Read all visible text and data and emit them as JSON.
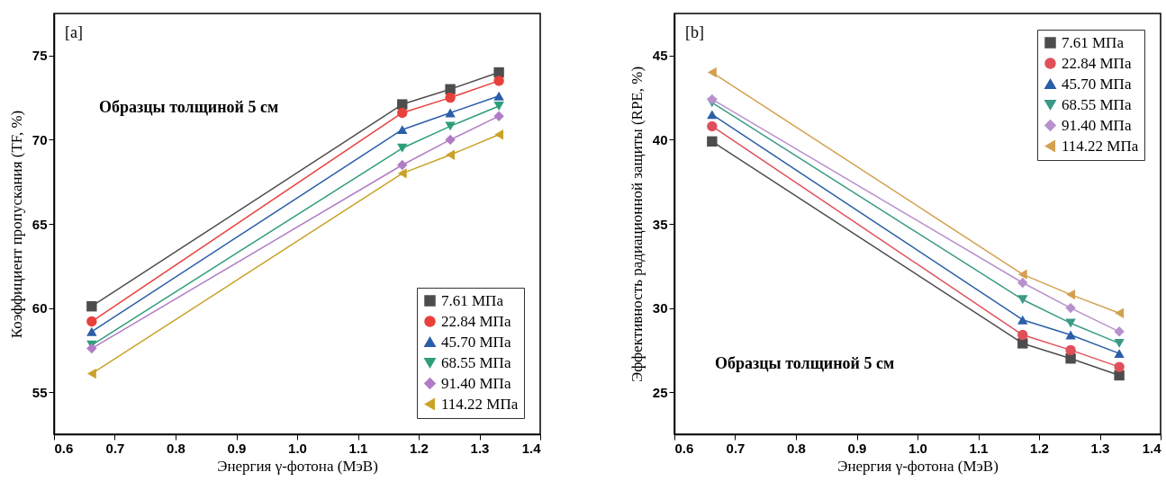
{
  "chart_data": [
    {
      "type": "line",
      "title": null,
      "annotations": [
        "[a]",
        "Образцы толщиной 5 см"
      ],
      "xlabel": "Энергия γ-фотона (МэВ)",
      "ylabel": "Коэффициент пропускания (TF, %)",
      "x": [
        0.662,
        1.173,
        1.252,
        1.332
      ],
      "xlim": [
        0.6,
        1.4
      ],
      "xticks": [
        0.6,
        0.7,
        0.8,
        0.9,
        {
          "value": 1,
          "label": "1.0"
        },
        1.1,
        1.2,
        1.3,
        1.4
      ],
      "ylim": [
        52.5,
        77.5
      ],
      "yticks": [
        55,
        60,
        65,
        70,
        75
      ],
      "legend": "bottom right",
      "line_style": "solid",
      "series": [
        {
          "name": "7.61 МПа",
          "color": "#4d4d4d",
          "marker": "square",
          "values": [
            60.1,
            72.1,
            73.0,
            74.0
          ]
        },
        {
          "name": "22.84 МПа",
          "color": "#e8413c",
          "marker": "circle",
          "values": [
            59.2,
            71.6,
            72.5,
            73.5
          ]
        },
        {
          "name": "45.70 МПа",
          "color": "#2a5ea8",
          "marker": "triangle-up",
          "values": [
            58.6,
            70.6,
            71.6,
            72.6
          ]
        },
        {
          "name": "68.55 МПа",
          "color": "#2e9e7a",
          "marker": "triangle-down",
          "values": [
            57.8,
            69.5,
            70.8,
            72.0
          ]
        },
        {
          "name": "91.40 МПа",
          "color": "#b07cc6",
          "marker": "diamond",
          "values": [
            57.6,
            68.5,
            70.0,
            71.4
          ]
        },
        {
          "name": "114.22 МПа",
          "color": "#c9a227",
          "marker": "triangle-left",
          "values": [
            56.1,
            68.0,
            69.1,
            70.3
          ]
        }
      ]
    },
    {
      "type": "line",
      "title": null,
      "annotations": [
        "[b]",
        "Образцы толщиной 5 см"
      ],
      "xlabel": "Энергия γ-фотона (МэВ)",
      "ylabel": "Эффективность радиационной защиты (RPE, %)",
      "x": [
        0.662,
        1.173,
        1.252,
        1.332
      ],
      "xlim": [
        0.6,
        1.4
      ],
      "xticks": [
        0.6,
        0.7,
        0.8,
        0.9,
        {
          "value": 1,
          "label": "1.0"
        },
        1.1,
        1.2,
        1.3,
        1.4
      ],
      "ylim": [
        22.5,
        47.5
      ],
      "yticks": [
        25,
        30,
        35,
        40,
        45
      ],
      "legend": "top right",
      "line_style": "solid",
      "series": [
        {
          "name": "7.61 МПа",
          "color": "#4d4d4d",
          "marker": "square",
          "values": [
            39.9,
            27.9,
            27.0,
            26.0
          ]
        },
        {
          "name": "22.84 МПа",
          "color": "#e0505a",
          "marker": "circle",
          "values": [
            40.8,
            28.4,
            27.5,
            26.5
          ]
        },
        {
          "name": "45.70 МПа",
          "color": "#2a5ea8",
          "marker": "triangle-up",
          "values": [
            41.5,
            29.3,
            28.4,
            27.3
          ]
        },
        {
          "name": "68.55 МПа",
          "color": "#3a9a86",
          "marker": "triangle-down",
          "values": [
            42.2,
            30.5,
            29.1,
            27.9
          ]
        },
        {
          "name": "91.40 МПа",
          "color": "#b890cc",
          "marker": "diamond",
          "values": [
            42.4,
            31.5,
            30.0,
            28.6
          ]
        },
        {
          "name": "114.22 МПа",
          "color": "#d4a050",
          "marker": "triangle-left",
          "values": [
            44.0,
            32.0,
            30.8,
            29.7
          ]
        }
      ]
    }
  ]
}
